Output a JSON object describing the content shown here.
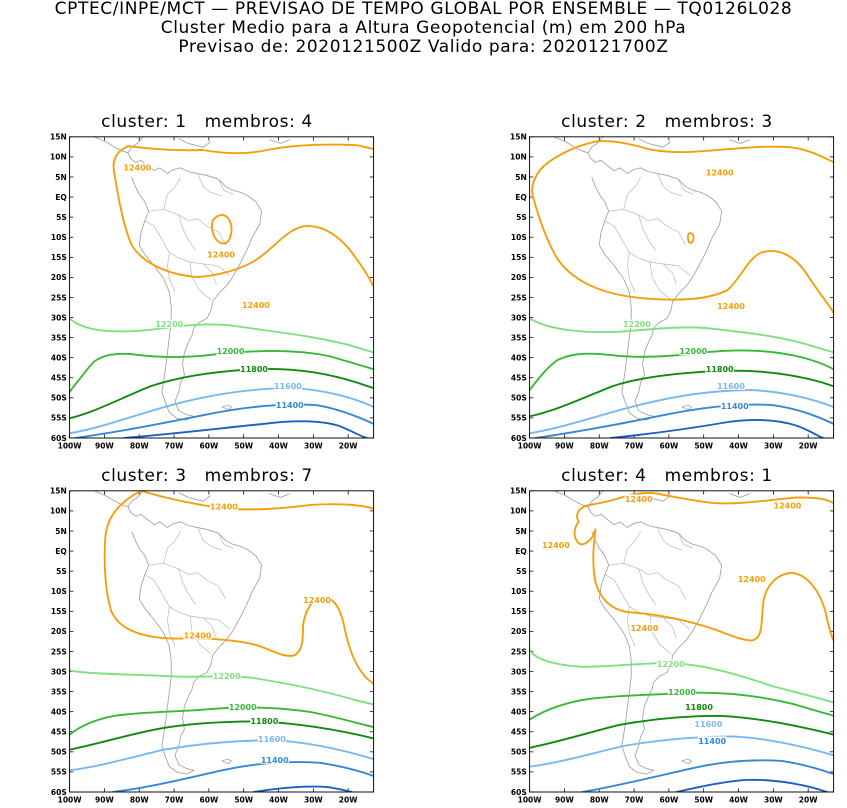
{
  "header": {
    "line1": "CPTEC/INPE/MCT — PREVISAO DE TEMPO GLOBAL POR ENSEMBLE — TQ0126L028",
    "line2": "Cluster Medio para a Altura Geopotencial (m) em 200 hPa",
    "line3": "Previsao de: 2020121500Z    Valido para: 2020121700Z"
  },
  "axes": {
    "lat_labels": [
      "15N",
      "10N",
      "5N",
      "EQ",
      "5S",
      "10S",
      "15S",
      "20S",
      "25S",
      "30S",
      "35S",
      "40S",
      "45S",
      "50S",
      "55S",
      "60S"
    ],
    "lon_labels": [
      "100W",
      "90W",
      "80W",
      "70W",
      "60W",
      "50W",
      "40W",
      "30W",
      "20W"
    ]
  },
  "contour_colors": {
    "12400": "#f59e0b",
    "12200": "#7fe07f",
    "12000": "#38b838",
    "11800": "#0f8a0f",
    "11600": "#7ab8ee",
    "11400": "#3388d8",
    "11200": "#1f5fc0"
  },
  "panels": [
    {
      "title_a": "cluster: 1",
      "title_b": "membros: 4",
      "labels": {
        "c12400a": "12400",
        "c12400b": "12400",
        "c12400c": "12400",
        "c12200": "12200",
        "c12000": "12000",
        "c11800": "11800",
        "c11600": "11600",
        "c11400": "11400"
      }
    },
    {
      "title_a": "cluster: 2",
      "title_b": "membros: 3",
      "labels": {
        "c12400a": "12400",
        "c12400c": "12400",
        "c12200": "12200",
        "c12000": "12000",
        "c11800": "11800",
        "c11600": "11600",
        "c11400": "11400"
      }
    },
    {
      "title_a": "cluster: 3",
      "title_b": "membros: 7",
      "labels": {
        "c12400a": "12400",
        "c12400b": "12400",
        "c12400c": "12400",
        "c12200": "12200",
        "c12000": "12000",
        "c11800": "11800",
        "c11600": "11600",
        "c11400": "11400"
      }
    },
    {
      "title_a": "cluster: 4",
      "title_b": "membros: 1",
      "labels": {
        "c12400a": "12400",
        "c12400b": "12400",
        "c12400c": "12400",
        "c12400d": "12400",
        "c12400e": "12400",
        "c12200": "12200",
        "c12000": "12000",
        "c11800": "11800",
        "c11600": "11600",
        "c11400": "11400"
      }
    }
  ]
}
